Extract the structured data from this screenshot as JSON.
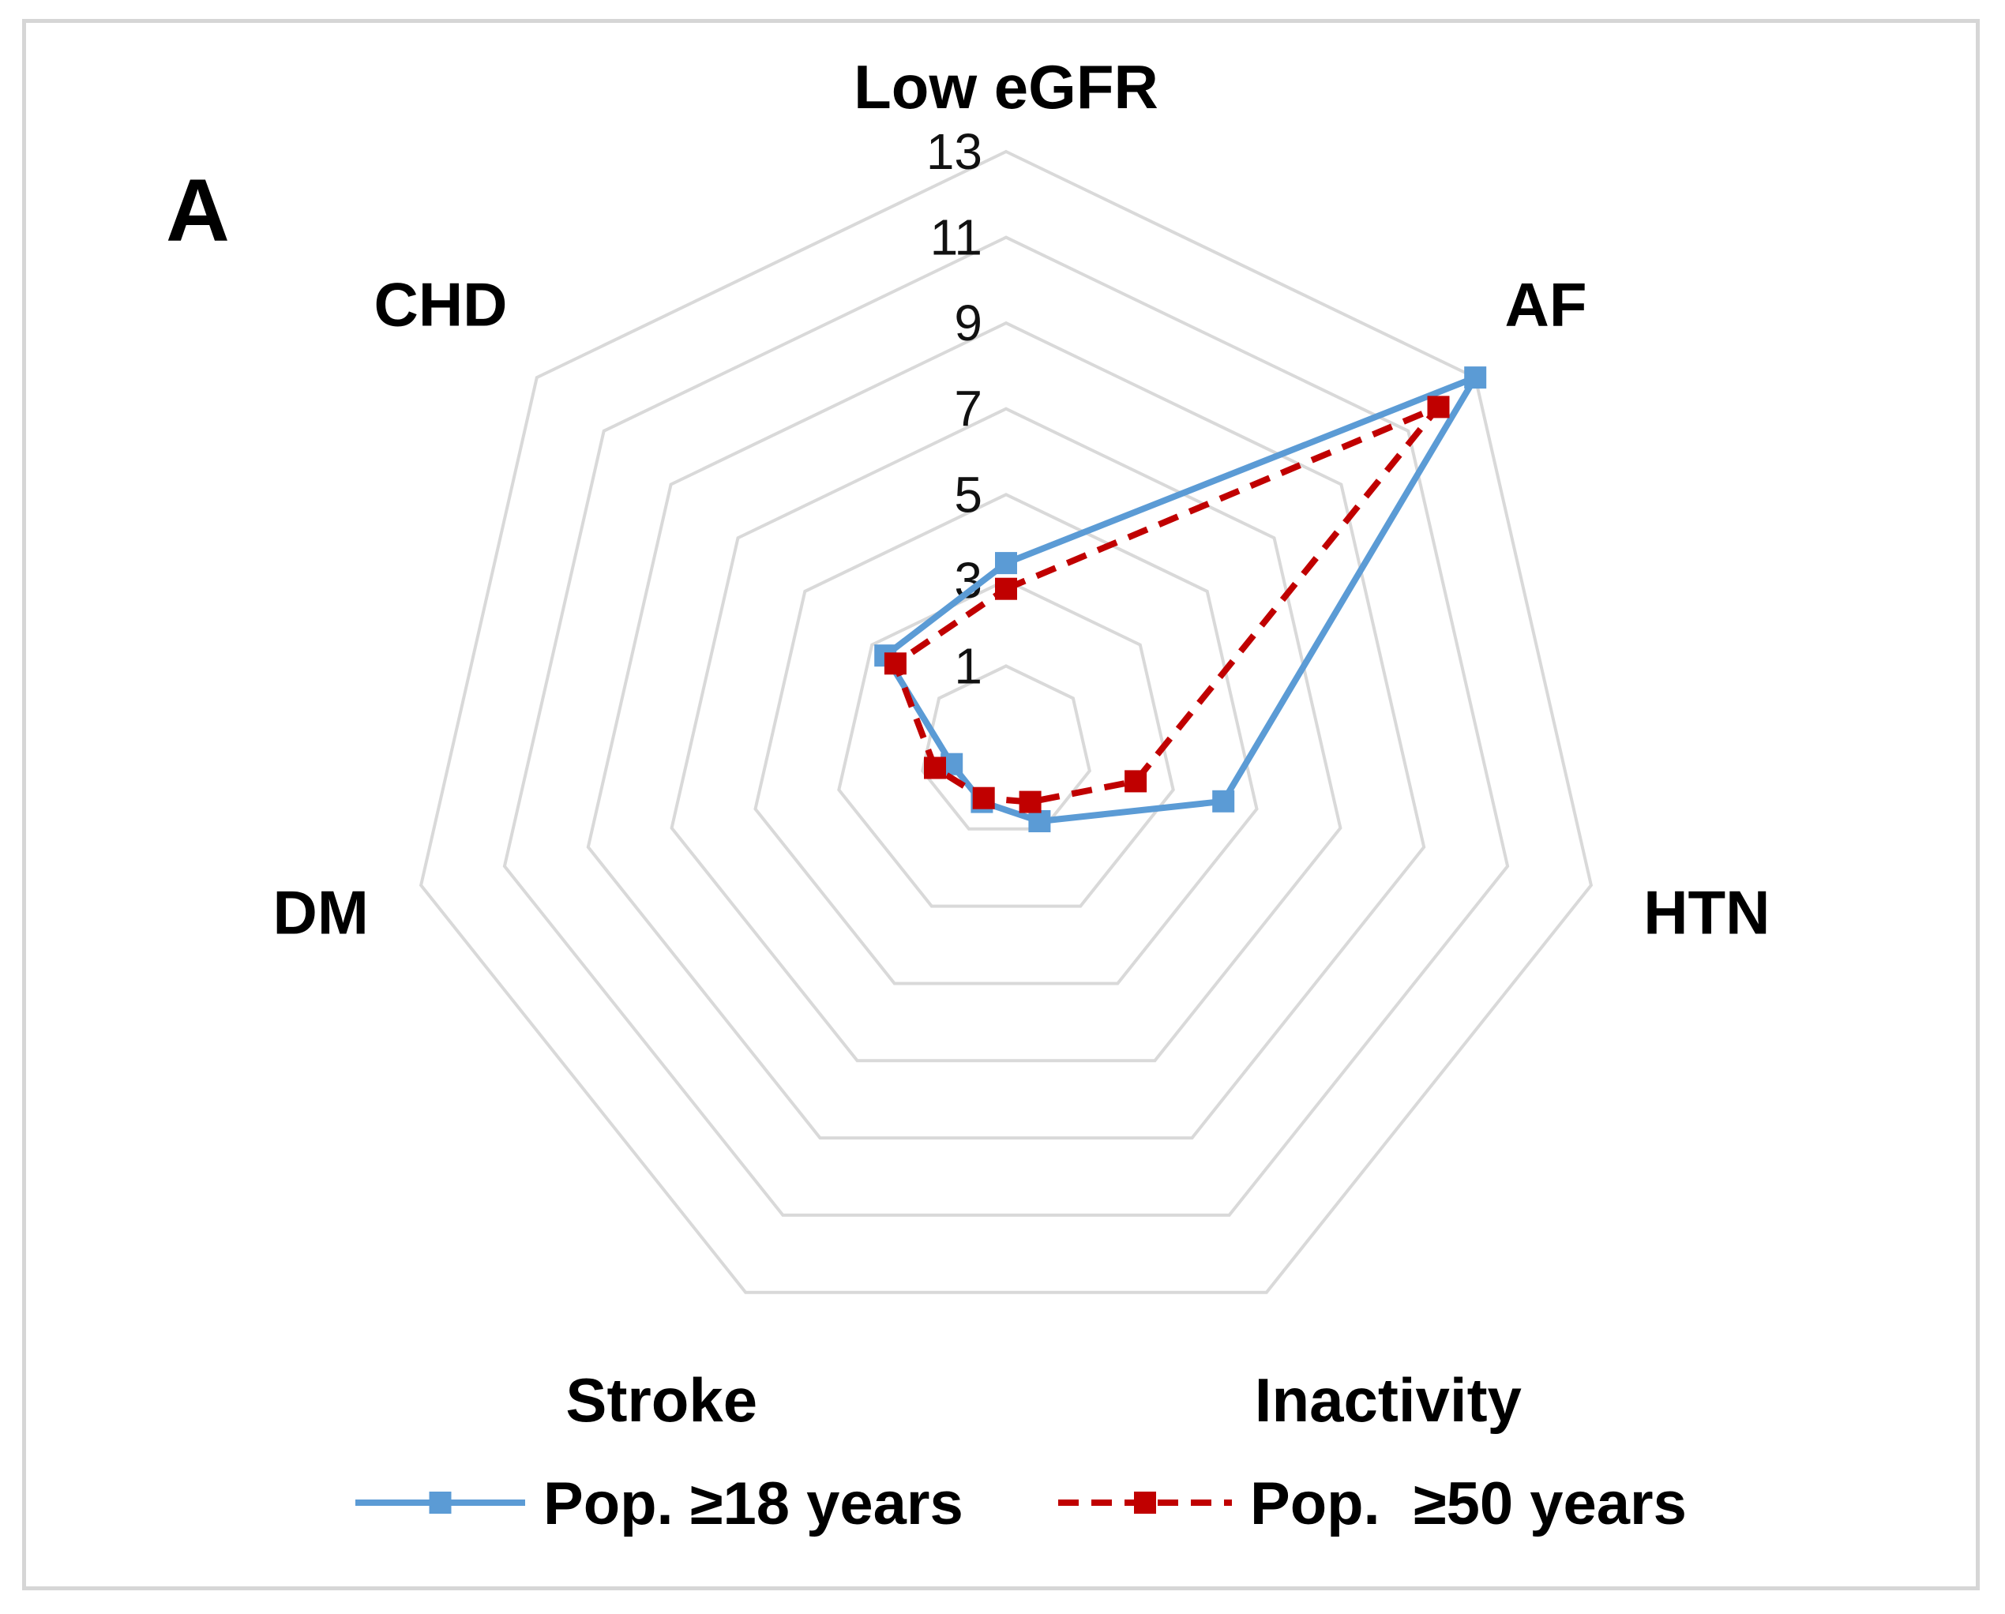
{
  "panel_label": "A",
  "chart_data": {
    "type": "radar",
    "categories": [
      "Low eGFR",
      "AF",
      "HTN",
      "Inactivity",
      "Stroke",
      "DM",
      "CHD"
    ],
    "rlim": [
      -1,
      13
    ],
    "ticks": [
      1,
      3,
      5,
      7,
      9,
      11,
      13
    ],
    "grid": true,
    "legend_position": "bottom",
    "series": [
      {
        "name": "Pop. ≥18 years",
        "values": [
          3.4,
          13.0,
          4.2,
          0.8,
          0.3,
          0.3,
          2.6
        ],
        "color": "#5b9bd5",
        "line_style": "solid",
        "marker": "square"
      },
      {
        "name": "Pop.  ≥50 years",
        "values": [
          2.8,
          11.9,
          2.1,
          0.3,
          0.2,
          0.7,
          2.3
        ],
        "color": "#c00000",
        "line_style": "dashed",
        "marker": "square"
      }
    ],
    "grid_color": "#d9d9d9"
  }
}
